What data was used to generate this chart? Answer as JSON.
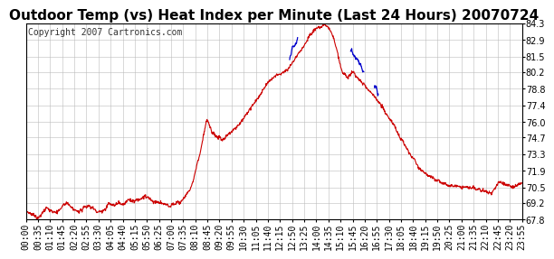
{
  "title": "Outdoor Temp (vs) Heat Index per Minute (Last 24 Hours) 20070724",
  "copyright_text": "Copyright 2007 Cartronics.com",
  "yticks": [
    67.8,
    69.2,
    70.5,
    71.9,
    73.3,
    74.7,
    76.0,
    77.4,
    78.8,
    80.2,
    81.5,
    82.9,
    84.3
  ],
  "ylim": [
    67.8,
    84.3
  ],
  "xtick_labels": [
    "00:00",
    "00:35",
    "01:10",
    "01:45",
    "02:20",
    "02:55",
    "03:30",
    "04:05",
    "04:40",
    "05:15",
    "05:50",
    "06:25",
    "07:00",
    "07:35",
    "08:10",
    "08:45",
    "09:20",
    "09:55",
    "10:30",
    "11:05",
    "11:40",
    "12:15",
    "12:50",
    "13:25",
    "14:00",
    "14:35",
    "15:10",
    "15:45",
    "16:20",
    "16:55",
    "17:30",
    "18:05",
    "18:40",
    "19:15",
    "19:50",
    "20:25",
    "21:00",
    "21:35",
    "22:10",
    "22:45",
    "23:20",
    "23:55"
  ],
  "bg_color": "#ffffff",
  "plot_bg_color": "#ffffff",
  "grid_color": "#bbbbbb",
  "red_line_color": "#cc0000",
  "blue_line_color": "#0000cc",
  "title_fontsize": 11,
  "copyright_fontsize": 7,
  "tick_fontsize": 7
}
